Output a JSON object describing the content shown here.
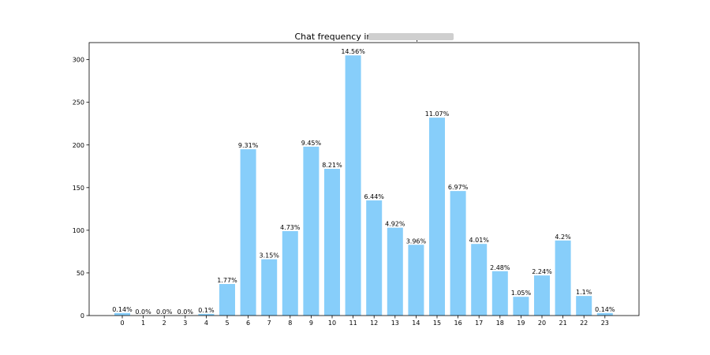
{
  "chart_data": {
    "type": "bar",
    "title": "Chat frequency in 24 hours |",
    "xlabel": "",
    "ylabel": "",
    "categories": [
      "0",
      "1",
      "2",
      "3",
      "4",
      "5",
      "6",
      "7",
      "8",
      "9",
      "10",
      "11",
      "12",
      "13",
      "14",
      "15",
      "16",
      "17",
      "18",
      "19",
      "20",
      "21",
      "22",
      "23"
    ],
    "values": [
      3,
      0,
      0,
      0,
      2,
      37,
      195,
      66,
      99,
      198,
      172,
      305,
      135,
      103,
      83,
      232,
      146,
      84,
      52,
      22,
      47,
      88,
      23,
      3
    ],
    "data_labels": [
      "0.14%",
      "0.0%",
      "0.0%",
      "0.0%",
      "0.1%",
      "1.77%",
      "9.31%",
      "3.15%",
      "4.73%",
      "9.45%",
      "8.21%",
      "14.56%",
      "6.44%",
      "4.92%",
      "3.96%",
      "11.07%",
      "6.97%",
      "4.01%",
      "2.48%",
      "1.05%",
      "2.24%",
      "4.2%",
      "1.1%",
      "0.14%"
    ],
    "yticks": [
      0,
      50,
      100,
      150,
      200,
      250,
      300
    ],
    "ylim": [
      0,
      320
    ],
    "bar_color": "#87cefa",
    "grid": false,
    "legend": "none"
  }
}
